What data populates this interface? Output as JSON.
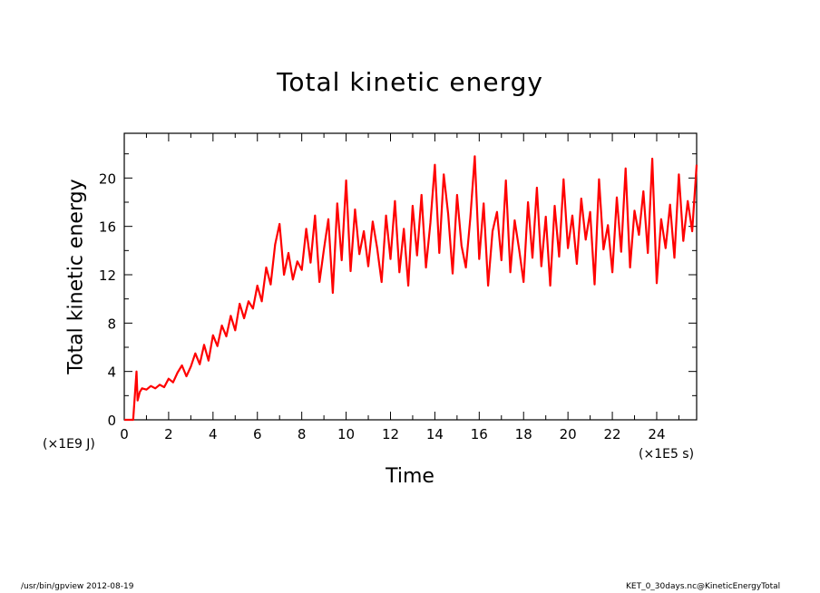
{
  "chart_data": {
    "type": "line",
    "title": "Total kinetic energy",
    "xlabel": "Time",
    "ylabel": "Total kinetic energy",
    "x_unit": "(×1E5 s)",
    "y_unit": "(×1E9 J)",
    "xlim": [
      0,
      25.8
    ],
    "ylim": [
      0,
      23.7
    ],
    "x_ticks": [
      0,
      2,
      4,
      6,
      8,
      10,
      12,
      14,
      16,
      18,
      20,
      22,
      24
    ],
    "y_ticks": [
      0,
      4,
      8,
      12,
      16,
      20
    ],
    "x_tick_labels": [
      "0",
      "2",
      "4",
      "6",
      "8",
      "10",
      "12",
      "14",
      "16",
      "18",
      "20",
      "22",
      "24"
    ],
    "y_tick_labels": [
      "0",
      "4",
      "8",
      "12",
      "16",
      "20"
    ],
    "grid": false,
    "series": [
      {
        "color": "#ff0000",
        "x": [
          0,
          0.4,
          0.55,
          0.6,
          0.7,
          0.8,
          1,
          1.2,
          1.4,
          1.6,
          1.8,
          2,
          2.2,
          2.4,
          2.6,
          2.8,
          3,
          3.2,
          3.4,
          3.6,
          3.8,
          4,
          4.2,
          4.4,
          4.6,
          4.8,
          5,
          5.2,
          5.4,
          5.6,
          5.8,
          6,
          6.2,
          6.4,
          6.6,
          6.8,
          7,
          7.2,
          7.4,
          7.6,
          7.8,
          8,
          8.2,
          8.4,
          8.6,
          8.8,
          9,
          9.2,
          9.4,
          9.6,
          9.8,
          10,
          10.2,
          10.4,
          10.6,
          10.8,
          11,
          11.2,
          11.4,
          11.6,
          11.8,
          12,
          12.2,
          12.4,
          12.6,
          12.8,
          13,
          13.2,
          13.4,
          13.6,
          13.8,
          14,
          14.2,
          14.4,
          14.6,
          14.8,
          15,
          15.2,
          15.4,
          15.6,
          15.8,
          16,
          16.2,
          16.4,
          16.6,
          16.8,
          17,
          17.2,
          17.4,
          17.6,
          17.8,
          18,
          18.2,
          18.4,
          18.6,
          18.8,
          19,
          19.2,
          19.4,
          19.6,
          19.8,
          20,
          20.2,
          20.4,
          20.6,
          20.8,
          21,
          21.2,
          21.4,
          21.6,
          21.8,
          22,
          22.2,
          22.4,
          22.6,
          22.8,
          23,
          23.2,
          23.4,
          23.6,
          23.8,
          24,
          24.2,
          24.4,
          24.6,
          24.8,
          25,
          25.2,
          25.4,
          25.6,
          25.8
        ],
        "y": [
          0,
          0,
          4,
          1.6,
          2.3,
          2.6,
          2.5,
          2.8,
          2.6,
          2.9,
          2.7,
          3.4,
          3.1,
          3.9,
          4.5,
          3.6,
          4.4,
          5.5,
          4.6,
          6.2,
          4.9,
          7,
          6.1,
          7.8,
          6.9,
          8.6,
          7.4,
          9.6,
          8.4,
          9.8,
          9.2,
          11.1,
          9.8,
          12.6,
          11.2,
          14.5,
          16.2,
          12,
          13.8,
          11.6,
          13.1,
          12.4,
          15.8,
          13,
          16.9,
          11.4,
          14.1,
          16.6,
          10.5,
          17.9,
          13.2,
          19.8,
          12.3,
          17.4,
          13.7,
          15.6,
          12.7,
          16.4,
          14.2,
          11.4,
          16.9,
          13.3,
          18.1,
          12.2,
          15.8,
          11.1,
          17.7,
          13.6,
          18.6,
          12.6,
          16.3,
          21.1,
          13.8,
          20.3,
          17,
          12.1,
          18.6,
          14.4,
          12.6,
          16.7,
          21.8,
          13.3,
          17.9,
          11.1,
          15.6,
          17.2,
          13.2,
          19.8,
          12.2,
          16.5,
          14.1,
          11.4,
          18,
          13.4,
          19.2,
          12.7,
          16.8,
          11.1,
          17.7,
          13.5,
          19.9,
          14.2,
          16.9,
          12.9,
          18.3,
          14.9,
          17.2,
          11.2,
          19.9,
          14.1,
          16.1,
          12.2,
          18.4,
          13.9,
          20.8,
          12.6,
          17.3,
          15.3,
          18.9,
          13.8,
          21.6,
          11.3,
          16.6,
          14.2,
          17.8,
          13.4,
          20.3,
          14.8,
          18.1,
          15.6,
          21.1
        ]
      }
    ]
  },
  "footer": {
    "left": "/usr/bin/gpview   2012-08-19",
    "right": "KET_0_30days.nc@KineticEnergyTotal"
  }
}
